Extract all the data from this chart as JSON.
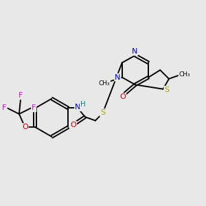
{
  "background_color": "#e8e8e8",
  "atom_colors": {
    "C": "#000000",
    "N": "#0000cc",
    "O": "#cc0000",
    "S": "#aaaa00",
    "F": "#dd00dd",
    "H": "#008888"
  },
  "bond_color": "#000000",
  "figsize": [
    3.0,
    3.0
  ],
  "dpi": 100,
  "lw": 1.4
}
